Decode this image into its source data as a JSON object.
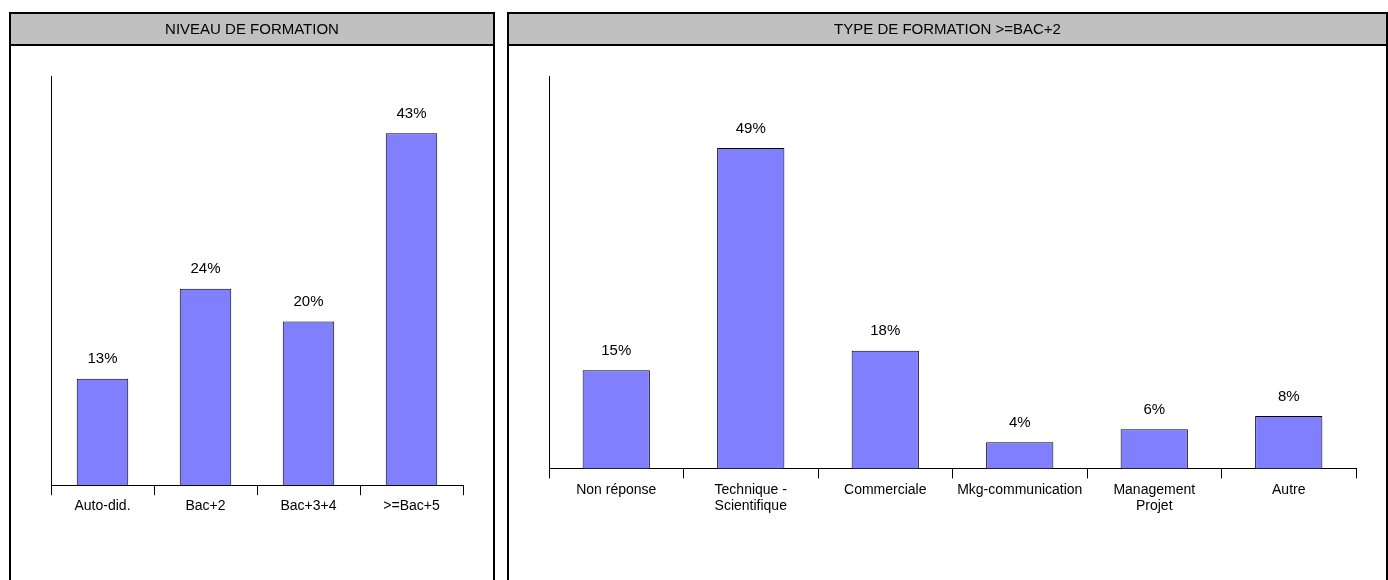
{
  "chart_data": [
    {
      "type": "bar",
      "title": "NIVEAU DE FORMATION",
      "categories": [
        "Auto-did.",
        "Bac+2",
        "Bac+3+4",
        ">=Bac+5"
      ],
      "values": [
        13,
        24,
        20,
        43
      ],
      "value_labels": [
        "13%",
        "24%",
        "20%",
        "43%"
      ],
      "color": "#8080ff",
      "legend": false,
      "grid": false
    },
    {
      "type": "bar",
      "title": "TYPE DE FORMATION >=BAC+2",
      "categories": [
        "Non réponse",
        "Technique - Scientifique",
        "Commerciale",
        "Mkg-communication",
        "Management Projet",
        "Autre"
      ],
      "values": [
        15,
        49,
        18,
        4,
        6,
        8
      ],
      "value_labels": [
        "15%",
        "49%",
        "18%",
        "4%",
        "6%",
        "8%"
      ],
      "color": "#8080ff",
      "legend": false,
      "grid": false
    }
  ]
}
